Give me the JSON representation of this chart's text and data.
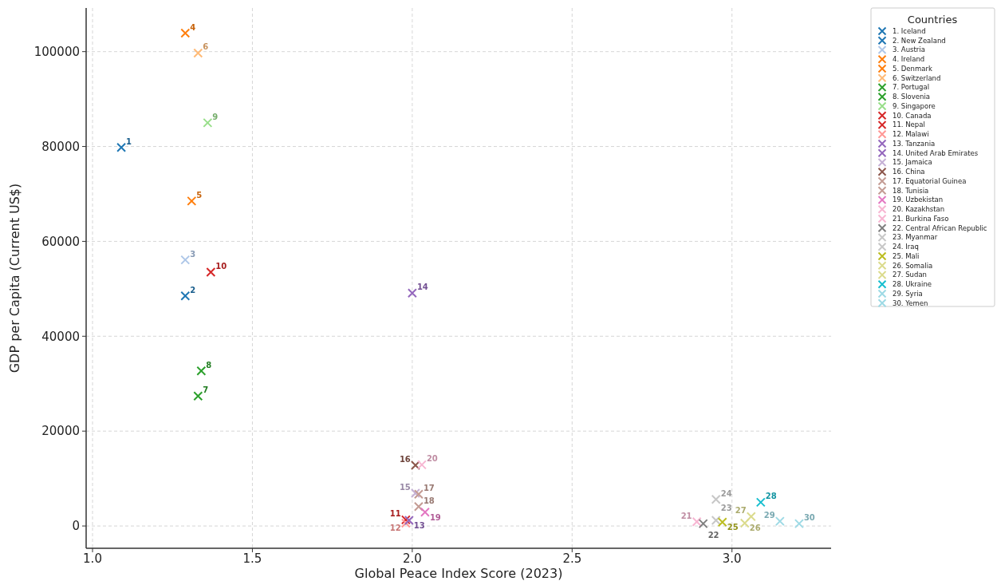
{
  "chart_data": {
    "type": "scatter",
    "xlabel": "Global Peace Index Score (2023)",
    "ylabel": "GDP per Capita (Current US$)",
    "legend_title": "Countries",
    "legend": "top right",
    "grid": true,
    "marker": "cross",
    "xlim": [
      0.98,
      3.31
    ],
    "ylim": [
      -4700,
      109200
    ],
    "xticks": [
      {
        "value": 1,
        "label": "1.0"
      },
      {
        "value": 1.5,
        "label": "1.5"
      },
      {
        "value": 2,
        "label": "2.0"
      },
      {
        "value": 2.5,
        "label": "2.5"
      },
      {
        "value": 3,
        "label": "3.0"
      }
    ],
    "yticks": [
      0,
      20000,
      40000,
      60000,
      80000,
      100000
    ],
    "series": [
      {
        "name": "1. Iceland",
        "color": "#1f77b4",
        "x": [
          1.09
        ],
        "values": [
          79800
        ]
      },
      {
        "name": "2. New Zealand",
        "color": "#1f77b4",
        "x": [
          1.29
        ],
        "values": [
          48500
        ]
      },
      {
        "name": "3. Austria",
        "color": "#aec7e8",
        "x": [
          1.29
        ],
        "values": [
          56100
        ]
      },
      {
        "name": "4. Ireland",
        "color": "#ff7f0e",
        "x": [
          1.29
        ],
        "values": [
          103900
        ]
      },
      {
        "name": "5. Denmark",
        "color": "#ff7f0e",
        "x": [
          1.31
        ],
        "values": [
          68500
        ]
      },
      {
        "name": "6. Switzerland",
        "color": "#ffbb78",
        "x": [
          1.33
        ],
        "values": [
          99700
        ]
      },
      {
        "name": "7. Portugal",
        "color": "#2ca02c",
        "x": [
          1.33
        ],
        "values": [
          27400
        ]
      },
      {
        "name": "8. Slovenia",
        "color": "#2ca02c",
        "x": [
          1.34
        ],
        "values": [
          32700
        ]
      },
      {
        "name": "9. Singapore",
        "color": "#98df8a",
        "x": [
          1.36
        ],
        "values": [
          85000
        ]
      },
      {
        "name": "10. Canada",
        "color": "#d62728",
        "x": [
          1.37
        ],
        "values": [
          53500
        ]
      },
      {
        "name": "11. Nepal",
        "color": "#d62728",
        "x": [
          1.98
        ],
        "values": [
          1300
        ]
      },
      {
        "name": "12. Malawi",
        "color": "#ff9896",
        "x": [
          1.98
        ],
        "values": [
          600
        ]
      },
      {
        "name": "13. Tanzania",
        "color": "#9467bd",
        "x": [
          1.99
        ],
        "values": [
          1200
        ]
      },
      {
        "name": "14. United Arab Emirates",
        "color": "#9467bd",
        "x": [
          2.0
        ],
        "values": [
          49100
        ]
      },
      {
        "name": "15. Jamaica",
        "color": "#c5b0d5",
        "x": [
          2.01
        ],
        "values": [
          6900
        ]
      },
      {
        "name": "16. China",
        "color": "#8c564b",
        "x": [
          2.01
        ],
        "values": [
          12800
        ]
      },
      {
        "name": "17. Equatorial Guinea",
        "color": "#c49c94",
        "x": [
          2.02
        ],
        "values": [
          6700
        ]
      },
      {
        "name": "18. Tunisia",
        "color": "#c49c94",
        "x": [
          2.02
        ],
        "values": [
          4100
        ]
      },
      {
        "name": "19. Uzbekistan",
        "color": "#e377c2",
        "x": [
          2.04
        ],
        "values": [
          2900
        ]
      },
      {
        "name": "20. Kazakhstan",
        "color": "#f7b6d2",
        "x": [
          2.03
        ],
        "values": [
          12900
        ]
      },
      {
        "name": "21. Burkina Faso",
        "color": "#f7b6d2",
        "x": [
          2.89
        ],
        "values": [
          900
        ]
      },
      {
        "name": "22. Central African Republic",
        "color": "#7f7f7f",
        "x": [
          2.91
        ],
        "values": [
          500
        ]
      },
      {
        "name": "23. Myanmar",
        "color": "#c7c7c7",
        "x": [
          2.95
        ],
        "values": [
          1200
        ]
      },
      {
        "name": "24. Iraq",
        "color": "#c7c7c7",
        "x": [
          2.95
        ],
        "values": [
          5600
        ]
      },
      {
        "name": "25. Mali",
        "color": "#bcbd22",
        "x": [
          2.97
        ],
        "values": [
          800
        ]
      },
      {
        "name": "26. Somalia",
        "color": "#dbdb8d",
        "x": [
          3.04
        ],
        "values": [
          600
        ]
      },
      {
        "name": "27. Sudan",
        "color": "#dbdb8d",
        "x": [
          3.06
        ],
        "values": [
          2000
        ]
      },
      {
        "name": "28. Ukraine",
        "color": "#17becf",
        "x": [
          3.09
        ],
        "values": [
          5000
        ]
      },
      {
        "name": "29. Syria",
        "color": "#9edae5",
        "x": [
          3.15
        ],
        "values": [
          1000
        ]
      },
      {
        "name": "30. Yemen",
        "color": "#9edae5",
        "x": [
          3.21
        ],
        "values": [
          500
        ]
      }
    ],
    "annotations": [
      {
        "text": "1",
        "x": 1.09,
        "y": 79800
      },
      {
        "text": "2",
        "x": 1.29,
        "y": 48500
      },
      {
        "text": "3",
        "x": 1.29,
        "y": 56100
      },
      {
        "text": "4",
        "x": 1.29,
        "y": 103900
      },
      {
        "text": "5",
        "x": 1.31,
        "y": 68500
      },
      {
        "text": "6",
        "x": 1.33,
        "y": 99700
      },
      {
        "text": "7",
        "x": 1.33,
        "y": 27400
      },
      {
        "text": "8",
        "x": 1.34,
        "y": 32700
      },
      {
        "text": "9",
        "x": 1.36,
        "y": 85000
      },
      {
        "text": "10",
        "x": 1.37,
        "y": 53500
      },
      {
        "text": "11",
        "x": 1.98,
        "y": 1300
      },
      {
        "text": "12",
        "x": 1.98,
        "y": 600
      },
      {
        "text": "13",
        "x": 1.99,
        "y": 1200
      },
      {
        "text": "14",
        "x": 2.0,
        "y": 49100
      },
      {
        "text": "15",
        "x": 2.01,
        "y": 6900
      },
      {
        "text": "16",
        "x": 2.01,
        "y": 12800
      },
      {
        "text": "17",
        "x": 2.02,
        "y": 6700
      },
      {
        "text": "18",
        "x": 2.02,
        "y": 4100
      },
      {
        "text": "19",
        "x": 2.04,
        "y": 2900
      },
      {
        "text": "20",
        "x": 2.03,
        "y": 12900
      },
      {
        "text": "21",
        "x": 2.89,
        "y": 900
      },
      {
        "text": "22",
        "x": 2.91,
        "y": 500
      },
      {
        "text": "23",
        "x": 2.95,
        "y": 1200
      },
      {
        "text": "24",
        "x": 2.95,
        "y": 5600
      },
      {
        "text": "25",
        "x": 2.97,
        "y": 800
      },
      {
        "text": "26",
        "x": 3.04,
        "y": 600
      },
      {
        "text": "27",
        "x": 3.06,
        "y": 2000
      },
      {
        "text": "28",
        "x": 3.09,
        "y": 5000
      },
      {
        "text": "29",
        "x": 3.15,
        "y": 1000
      },
      {
        "text": "30",
        "x": 3.21,
        "y": 500
      }
    ]
  }
}
